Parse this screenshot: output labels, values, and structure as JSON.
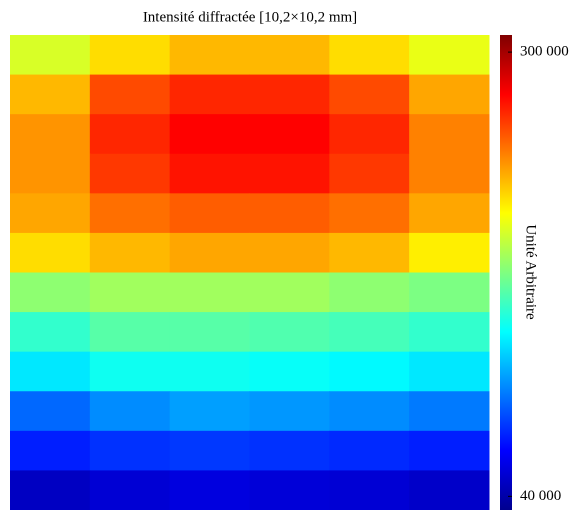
{
  "chart_data": {
    "type": "heatmap",
    "title": "Intensité diffractée [10,2×10,2 mm]",
    "colorbar_label": "Unité Arbitraire",
    "colormap": "jet",
    "clim": [
      32000,
      310000
    ],
    "cticks": [
      {
        "value": 300000,
        "label": "300 000"
      },
      {
        "value": 40000,
        "label": "40 000"
      }
    ],
    "values": [
      [
        195000,
        215000,
        225000,
        225000,
        215000,
        200000
      ],
      [
        225000,
        255000,
        265000,
        265000,
        255000,
        230000
      ],
      [
        235000,
        265000,
        275000,
        275000,
        265000,
        240000
      ],
      [
        235000,
        260000,
        270000,
        270000,
        260000,
        240000
      ],
      [
        230000,
        245000,
        250000,
        250000,
        245000,
        230000
      ],
      [
        215000,
        225000,
        230000,
        230000,
        225000,
        210000
      ],
      [
        175000,
        180000,
        180000,
        180000,
        175000,
        170000
      ],
      [
        150000,
        160000,
        160000,
        158000,
        155000,
        150000
      ],
      [
        130000,
        140000,
        140000,
        138000,
        135000,
        130000
      ],
      [
        95000,
        105000,
        110000,
        108000,
        105000,
        100000
      ],
      [
        75000,
        80000,
        82000,
        80000,
        78000,
        75000
      ],
      [
        50000,
        55000,
        58000,
        56000,
        55000,
        52000
      ]
    ]
  }
}
